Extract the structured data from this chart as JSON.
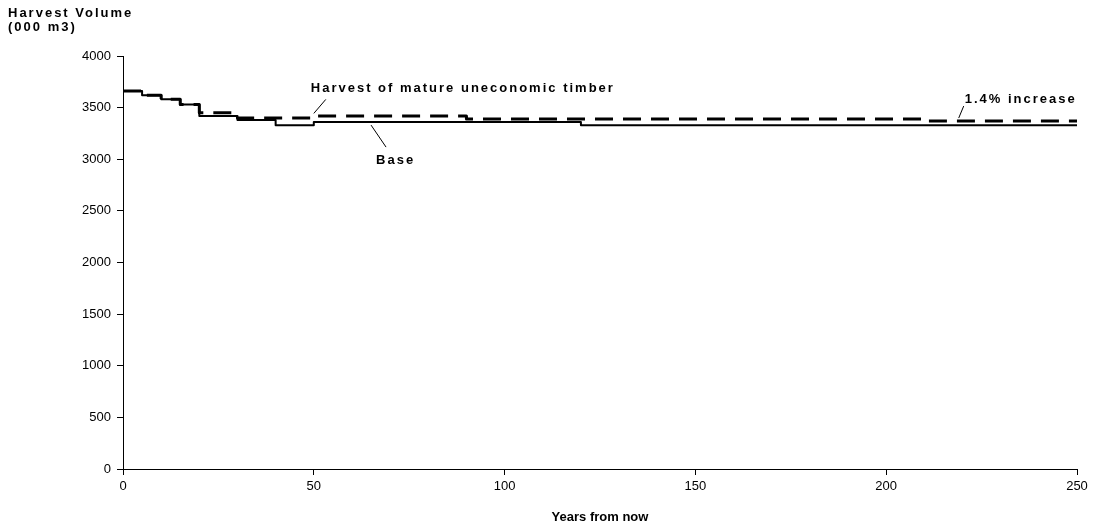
{
  "chart_data": {
    "type": "step",
    "xlabel": "Years from now",
    "ylabel": "Harvest Volume\n(000 m3)",
    "xlim": [
      0,
      250
    ],
    "xticks": [
      0,
      50,
      100,
      150,
      200,
      250
    ],
    "ylim": [
      0,
      4000
    ],
    "yticks": [
      0,
      500,
      1000,
      1500,
      2000,
      2500,
      3000,
      3500,
      4000
    ],
    "grid": false,
    "legend": false,
    "marker": "none",
    "series": [
      {
        "color": "#000000",
        "line_style": "solid",
        "x": [
          0,
          5,
          10,
          15,
          20,
          30,
          40,
          50,
          120,
          250
        ],
        "values": [
          3660,
          3620,
          3580,
          3530,
          3420,
          3380,
          3330,
          3360,
          3330,
          3330
        ]
      },
      {
        "color": "#000000",
        "line_style": "dashed",
        "x": [
          0,
          5,
          10,
          15,
          20,
          30,
          40,
          50,
          90,
          140,
          210,
          250
        ],
        "values": [
          3660,
          3620,
          3580,
          3530,
          3450,
          3400,
          3400,
          3420,
          3390,
          3390,
          3370,
          3370
        ]
      }
    ],
    "annotations": [
      {
        "text": "Harvest of mature uneconomic timber",
        "x": 50,
        "y": 3415
      },
      {
        "text": "Base",
        "x": 65,
        "y": 3360
      },
      {
        "text": "1.4% increase",
        "x": 219,
        "y": 3370
      }
    ]
  }
}
